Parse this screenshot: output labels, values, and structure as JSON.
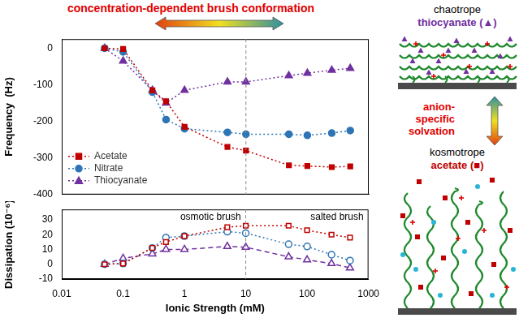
{
  "chart_data": [
    {
      "type": "line",
      "y_label": "Frequency  (Hz)",
      "x": [
        0.05,
        0.1,
        0.3,
        0.5,
        1,
        5,
        10,
        50,
        100,
        250,
        500
      ],
      "xlim": [
        0.01,
        1000
      ],
      "xticks": [
        0.01,
        0.1,
        1,
        10,
        100,
        1000
      ],
      "ylim": [
        -400,
        25
      ],
      "yticks": [
        -400,
        -300,
        -200,
        -100,
        0
      ],
      "log": "x",
      "grid": false,
      "legend": "lower left",
      "tick_labels": "y",
      "reference_x": 10,
      "series": [
        {
          "name": "Acetate",
          "color": "#c00000",
          "marker": "square",
          "line_style": "dotted",
          "values": [
            0,
            -2,
            -115,
            -145,
            -215,
            -270,
            -280,
            -320,
            -322,
            -325,
            -323
          ]
        },
        {
          "name": "Nitrate",
          "color": "#2e75b6",
          "marker": "circle",
          "line_style": "dotted",
          "values": [
            0,
            -10,
            -120,
            -195,
            -220,
            -230,
            -235,
            -235,
            -238,
            -232,
            -225
          ]
        },
        {
          "name": "Thiocyanate",
          "color": "#7030a0",
          "marker": "triangle",
          "line_style": "dotted",
          "values": [
            0,
            -35,
            -115,
            -150,
            -115,
            -92,
            -92,
            -75,
            -68,
            -60,
            -55
          ]
        }
      ]
    },
    {
      "type": "line",
      "x_label": "Ionic Strength (mM)",
      "y_label": "Dissipation (10⁻⁶)",
      "x": [
        0.05,
        0.1,
        0.3,
        0.5,
        1,
        5,
        10,
        50,
        100,
        250,
        500
      ],
      "xlim": [
        0.01,
        1000
      ],
      "xticks": [
        0.01,
        0.1,
        1,
        10,
        100,
        1000
      ],
      "ylim": [
        -10,
        37
      ],
      "yticks": [
        -10,
        0,
        10,
        20,
        30
      ],
      "log": "x",
      "grid": false,
      "reference_x": 10,
      "annotations": [
        "osmotic brush",
        "salted brush"
      ],
      "series": [
        {
          "name": "Acetate",
          "color": "#c00000",
          "marker": "open-square",
          "line_style": "dotted",
          "values": [
            0,
            0.5,
            11,
            15,
            19,
            25,
            26,
            26,
            23,
            20,
            18
          ]
        },
        {
          "name": "Nitrate",
          "color": "#2e75b6",
          "marker": "open-circle",
          "line_style": "dotted",
          "values": [
            0,
            0.5,
            11,
            18,
            19,
            22,
            21,
            13.5,
            12,
            6.5,
            2.5
          ]
        },
        {
          "name": "Thiocyanate",
          "color": "#7030a0",
          "marker": "open-triangle",
          "line_style": "dashed",
          "values": [
            0,
            4,
            7,
            10,
            10,
            12,
            11.5,
            5,
            3,
            0.5,
            -2.5
          ]
        }
      ]
    }
  ],
  "annotations": {
    "title_arrow": "concentration-dependent brush conformation",
    "side_arrow": "anion-specific solvation"
  },
  "schematic": [
    {
      "label": "chaotrope",
      "species": "thiocyanate (▲)",
      "color": "#7030a0"
    },
    {
      "label": "kosmotrope",
      "species": "acetate (■)",
      "color": "#c00000"
    }
  ]
}
